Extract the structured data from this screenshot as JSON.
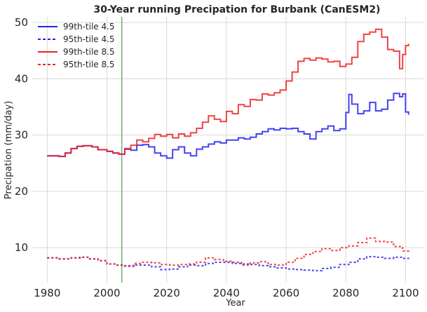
{
  "chart_data": {
    "type": "line",
    "title": "30-Year running Precipation for Burbank (CanESM2)",
    "xlabel": "Year",
    "ylabel": "Precipation (mm/day)",
    "xlim": [
      1975,
      2106
    ],
    "ylim": [
      3.8,
      51
    ],
    "x_ticks": [
      1980,
      2000,
      2020,
      2040,
      2060,
      2080,
      2100
    ],
    "y_ticks": [
      10,
      20,
      30,
      40,
      50
    ],
    "grid": true,
    "legend_position": "top-left",
    "vertical_marker": {
      "x": 2005,
      "color": "#2e8b2e"
    },
    "series": [
      {
        "name": "99th-tile 4.5",
        "color": "#2222ee",
        "style": "solid",
        "x": [
          1980,
          1984,
          1986,
          1988,
          1990,
          1992,
          1995,
          1997,
          2000,
          2002,
          2004,
          2006,
          2008,
          2010,
          2012,
          2014,
          2016,
          2018,
          2020,
          2022,
          2024,
          2026,
          2028,
          2030,
          2032,
          2034,
          2036,
          2038,
          2040,
          2042,
          2044,
          2046,
          2048,
          2050,
          2052,
          2054,
          2056,
          2058,
          2060,
          2062,
          2064,
          2066,
          2068,
          2070,
          2072,
          2074,
          2076,
          2078,
          2080,
          2081,
          2082,
          2084,
          2086,
          2088,
          2090,
          2092,
          2094,
          2096,
          2098,
          2099,
          2100,
          2101
        ],
        "values": [
          26.3,
          26.2,
          26.8,
          27.6,
          28.0,
          28.1,
          27.9,
          27.4,
          27.1,
          26.8,
          26.6,
          27.5,
          27.3,
          28.2,
          28.3,
          27.9,
          26.8,
          26.3,
          25.9,
          27.4,
          27.9,
          26.8,
          26.3,
          27.5,
          27.9,
          28.4,
          28.8,
          28.6,
          29.1,
          29.1,
          29.5,
          29.3,
          29.6,
          30.2,
          30.6,
          31.1,
          30.9,
          31.2,
          31.1,
          31.2,
          30.6,
          30.2,
          29.3,
          30.6,
          31.1,
          31.6,
          30.8,
          31.1,
          34.0,
          37.2,
          35.5,
          33.8,
          34.3,
          35.8,
          34.3,
          34.6,
          36.2,
          37.4,
          36.8,
          37.3,
          34.1,
          33.6
        ]
      },
      {
        "name": "95th-tile 4.5",
        "color": "#2222ee",
        "style": "dashed",
        "x": [
          1980,
          1984,
          1988,
          1991,
          1994,
          1997,
          2000,
          2003,
          2006,
          2009,
          2012,
          2015,
          2018,
          2021,
          2024,
          2027,
          2030,
          2033,
          2036,
          2039,
          2042,
          2045,
          2048,
          2051,
          2054,
          2057,
          2060,
          2063,
          2066,
          2069,
          2072,
          2075,
          2078,
          2081,
          2084,
          2087,
          2090,
          2093,
          2096,
          2099,
          2101
        ],
        "values": [
          8.2,
          8.0,
          8.2,
          8.3,
          8.0,
          7.7,
          7.1,
          6.9,
          6.7,
          6.9,
          6.9,
          6.6,
          6.1,
          6.2,
          6.6,
          6.9,
          6.8,
          7.2,
          7.4,
          7.4,
          7.2,
          7.1,
          7.0,
          6.8,
          6.6,
          6.4,
          6.2,
          6.1,
          6.0,
          5.9,
          6.3,
          6.5,
          7.0,
          7.4,
          8.0,
          8.4,
          8.3,
          8.1,
          8.3,
          8.1,
          8.0
        ]
      },
      {
        "name": "99th-tile 8.5",
        "color": "#ee2222",
        "style": "solid",
        "x": [
          1980,
          1984,
          1986,
          1988,
          1990,
          1992,
          1995,
          1997,
          2000,
          2002,
          2004,
          2006,
          2008,
          2010,
          2012,
          2014,
          2016,
          2018,
          2020,
          2022,
          2024,
          2026,
          2028,
          2030,
          2032,
          2034,
          2036,
          2038,
          2040,
          2042,
          2044,
          2046,
          2048,
          2050,
          2052,
          2054,
          2056,
          2058,
          2060,
          2062,
          2064,
          2066,
          2068,
          2070,
          2072,
          2074,
          2076,
          2078,
          2080,
          2082,
          2084,
          2086,
          2088,
          2090,
          2092,
          2094,
          2096,
          2098,
          2099,
          2100,
          2101
        ],
        "values": [
          26.3,
          26.2,
          26.8,
          27.6,
          28.0,
          28.1,
          27.9,
          27.4,
          27.1,
          26.8,
          26.6,
          27.6,
          28.2,
          29.1,
          28.8,
          29.4,
          30.1,
          29.8,
          30.1,
          29.5,
          30.2,
          29.8,
          30.4,
          31.2,
          32.3,
          33.4,
          32.8,
          32.4,
          34.2,
          33.8,
          35.4,
          35.1,
          36.3,
          36.2,
          37.3,
          37.1,
          37.5,
          38.0,
          39.6,
          41.2,
          43.1,
          43.6,
          43.3,
          43.7,
          43.5,
          43.0,
          43.1,
          42.2,
          42.6,
          43.8,
          46.6,
          47.9,
          48.3,
          48.8,
          47.4,
          45.2,
          44.9,
          41.8,
          44.3,
          45.9,
          46.2
        ]
      },
      {
        "name": "95th-tile 8.5",
        "color": "#ee2222",
        "style": "dashed",
        "x": [
          1980,
          1984,
          1988,
          1991,
          1994,
          1997,
          2000,
          2003,
          2006,
          2009,
          2012,
          2015,
          2018,
          2021,
          2024,
          2027,
          2030,
          2033,
          2036,
          2039,
          2042,
          2045,
          2048,
          2051,
          2054,
          2057,
          2060,
          2063,
          2066,
          2069,
          2072,
          2075,
          2078,
          2081,
          2084,
          2087,
          2090,
          2093,
          2096,
          2099,
          2101
        ],
        "values": [
          8.2,
          8.0,
          8.2,
          8.3,
          8.0,
          7.7,
          7.1,
          6.9,
          6.8,
          7.2,
          7.4,
          7.3,
          7.0,
          6.9,
          7.0,
          7.1,
          7.4,
          8.2,
          7.9,
          7.6,
          7.4,
          6.9,
          7.3,
          7.5,
          7.0,
          6.9,
          7.4,
          8.1,
          8.8,
          9.3,
          9.8,
          9.5,
          10.0,
          10.3,
          10.9,
          11.7,
          11.1,
          11.0,
          10.2,
          9.4,
          9.5
        ]
      }
    ]
  }
}
